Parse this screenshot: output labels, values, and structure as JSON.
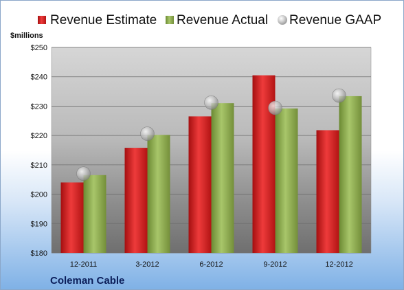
{
  "chart_data": {
    "type": "bar",
    "title": "",
    "ylabel": "$millions",
    "categories": [
      "12-2011",
      "3-2012",
      "6-2012",
      "9-2012",
      "12-2012"
    ],
    "series": [
      {
        "name": "Revenue Estimate",
        "kind": "bar",
        "color": "#cc1f1f",
        "values": [
          204.0,
          215.8,
          226.5,
          240.5,
          221.8
        ]
      },
      {
        "name": "Revenue Actual",
        "kind": "bar",
        "color": "#8aab4a",
        "values": [
          206.5,
          220.2,
          231.0,
          229.2,
          233.4
        ]
      },
      {
        "name": "Revenue GAAP",
        "kind": "marker",
        "color": "#b8b8b8",
        "values": [
          207.0,
          220.6,
          231.2,
          229.4,
          233.6
        ]
      }
    ],
    "ylim": [
      180,
      250
    ],
    "yticks": [
      180,
      190,
      200,
      210,
      220,
      230,
      240,
      250
    ],
    "ytick_labels": [
      "$180",
      "$190",
      "$200",
      "$210",
      "$220",
      "$230",
      "$240",
      "$250"
    ],
    "grid": true,
    "legend_position": "top"
  },
  "footer": {
    "company": "Coleman Cable"
  }
}
